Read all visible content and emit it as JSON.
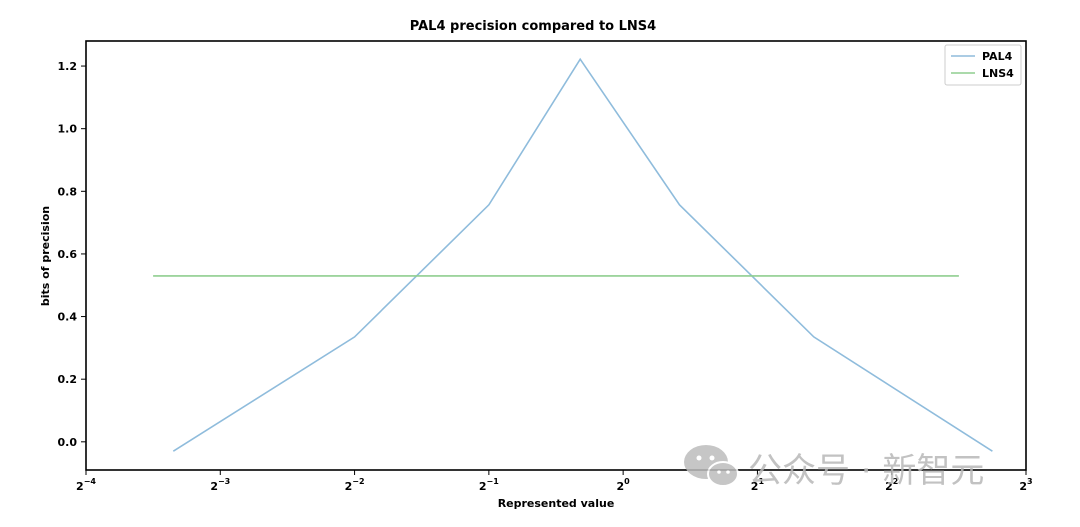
{
  "chart_data": {
    "type": "line",
    "title": "PAL4 precision compared to LNS4",
    "xlabel": "Represented value",
    "ylabel": "bits of precision",
    "xscale": "log2",
    "xlim_exp": [
      -4,
      3
    ],
    "ylim": [
      -0.09,
      1.28
    ],
    "yticks": [
      0.0,
      0.2,
      0.4,
      0.6,
      0.8,
      1.0,
      1.2
    ],
    "ytick_labels": [
      "0.0",
      "0.2",
      "0.4",
      "0.6",
      "0.8",
      "1.0",
      "1.2"
    ],
    "xtick_exponents": [
      -4,
      -3,
      -2,
      -1,
      0,
      1,
      2,
      3
    ],
    "xtick_labels": [
      {
        "base": "2",
        "exp": "−4"
      },
      {
        "base": "2",
        "exp": "−3"
      },
      {
        "base": "2",
        "exp": "−2"
      },
      {
        "base": "2",
        "exp": "−1"
      },
      {
        "base": "2",
        "exp": "0"
      },
      {
        "base": "2",
        "exp": "1"
      },
      {
        "base": "2",
        "exp": "2"
      },
      {
        "base": "2",
        "exp": "3"
      }
    ],
    "legend_position": "top-right",
    "series": [
      {
        "name": "PAL4",
        "color": "#8fbcdc",
        "x_exp": [
          -3.35,
          -2.0,
          -1.0,
          -0.32,
          0.42,
          1.42,
          2.75
        ],
        "y": [
          -0.03,
          0.335,
          0.757,
          1.222,
          0.757,
          0.335,
          -0.03
        ]
      },
      {
        "name": "LNS4",
        "color": "#8fce8f",
        "x_exp": [
          -3.5,
          2.5
        ],
        "y": [
          0.53,
          0.53
        ]
      }
    ]
  },
  "watermark": {
    "text": "公众号 · 新智元",
    "icon": "wechat-icon"
  }
}
